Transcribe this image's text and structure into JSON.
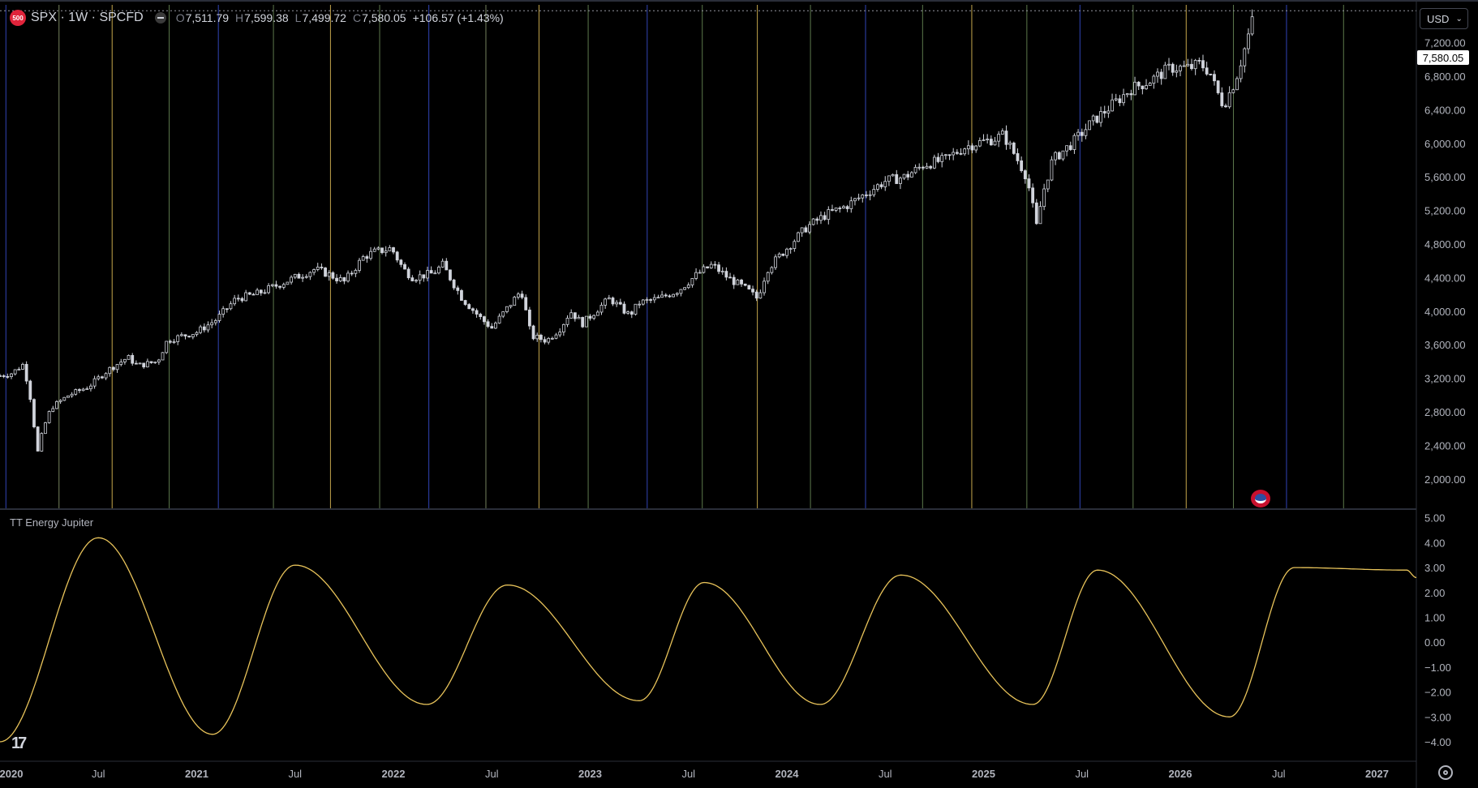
{
  "legend": {
    "badge": "500",
    "symbol": "SPX · 1W · SPCFD",
    "open_label": "O",
    "open": "7,511.79",
    "high_label": "H",
    "high": "7,599.38",
    "low_label": "L",
    "low": "7,499.72",
    "close_label": "C",
    "close": "7,580.05",
    "change": "+106.57 (+1.43%)"
  },
  "currency": "USD",
  "indicator": {
    "title": "TT Energy Jupiter"
  },
  "colors": {
    "background": "#000000",
    "candle": "#d1d4dc",
    "sine": "#e8c35a",
    "price_line": "#ffffff"
  },
  "icons": [
    "tradingview-logo-icon",
    "gear-icon",
    "us-flag-event-icon",
    "chevron-down-icon",
    "eye-icon"
  ],
  "chart_data": [
    {
      "type": "candlestick",
      "title": "SPX · 1W · SPCFD",
      "y_ticks": [
        "2,000.00",
        "2,400.00",
        "2,800.00",
        "3,200.00",
        "3,600.00",
        "4,000.00",
        "4,400.00",
        "4,800.00",
        "5,200.00",
        "5,600.00",
        "6,000.00",
        "6,400.00",
        "6,800.00",
        "7,200.00"
      ],
      "y_tick_values": [
        2000,
        2400,
        2800,
        3200,
        3600,
        4000,
        4400,
        4800,
        5200,
        5600,
        6000,
        6400,
        6800,
        7200
      ],
      "ylim": [
        1650,
        7650
      ],
      "last_price": "7,580.05",
      "last_price_value": 7580.05,
      "x_labels": [
        "2020",
        "Jul",
        "2021",
        "Jul",
        "2022",
        "Jul",
        "2023",
        "Jul",
        "2024",
        "Jul",
        "2025",
        "Jul",
        "2026",
        "Jul",
        "2027"
      ],
      "x_label_years": [
        2020.0,
        2020.5,
        2021.0,
        2021.5,
        2022.0,
        2022.5,
        2023.0,
        2023.5,
        2024.0,
        2024.5,
        2025.0,
        2025.5,
        2026.0,
        2026.5,
        2027.0
      ],
      "xlim": [
        2020.0,
        2027.2
      ],
      "series": [
        {
          "x_year": [
            2020.0,
            2020.06,
            2020.12,
            2020.16,
            2020.19,
            2020.22,
            2020.26,
            2020.35,
            2020.45,
            2020.55,
            2020.65,
            2020.7,
            2020.8,
            2020.85,
            2020.92,
            2021.0,
            2021.1,
            2021.2,
            2021.3,
            2021.4,
            2021.5,
            2021.6,
            2021.66,
            2021.75,
            2021.85,
            2021.9,
            2021.99,
            2022.05,
            2022.1,
            2022.2,
            2022.25,
            2022.35,
            2022.45,
            2022.5,
            2022.6,
            2022.65,
            2022.7,
            2022.78,
            2022.85,
            2022.9,
            2022.96,
            2023.05,
            2023.1,
            2023.2,
            2023.25,
            2023.35,
            2023.45,
            2023.55,
            2023.62,
            2023.7,
            2023.8,
            2023.85,
            2023.9,
            2024.0,
            2024.1,
            2024.2,
            2024.3,
            2024.4,
            2024.5,
            2024.6,
            2024.7,
            2024.8,
            2024.9,
            2024.96,
            2025.05,
            2025.1,
            2025.15,
            2025.22,
            2025.27,
            2025.3,
            2025.35,
            2025.45,
            2025.55,
            2025.65,
            2025.75,
            2025.85,
            2025.95,
            2026.05,
            2026.1,
            2026.15,
            2026.18,
            2026.22,
            2026.28,
            2026.33,
            2026.38
          ],
          "close": [
            3230,
            3260,
            3370,
            2900,
            2300,
            2600,
            2850,
            3000,
            3100,
            3300,
            3450,
            3350,
            3400,
            3650,
            3700,
            3750,
            3900,
            4150,
            4200,
            4300,
            4400,
            4500,
            4450,
            4350,
            4650,
            4700,
            4750,
            4500,
            4400,
            4450,
            4550,
            4150,
            3900,
            3800,
            4100,
            4250,
            3700,
            3650,
            3800,
            4000,
            3850,
            4050,
            4150,
            3950,
            4100,
            4150,
            4250,
            4450,
            4550,
            4400,
            4250,
            4150,
            4500,
            4750,
            5000,
            5150,
            5250,
            5400,
            5550,
            5600,
            5750,
            5800,
            5950,
            6000,
            6050,
            6100,
            5900,
            5600,
            5000,
            5400,
            5800,
            6000,
            6250,
            6450,
            6650,
            6750,
            6900,
            6900,
            6950,
            6850,
            6650,
            6450,
            6750,
            7150,
            7580
          ]
        }
      ]
    },
    {
      "type": "line",
      "title": "TT Energy Jupiter",
      "y_ticks": [
        "5.00",
        "4.00",
        "3.00",
        "2.00",
        "1.00",
        "0.00",
        "−1.00",
        "−2.00",
        "−3.00",
        "−4.00"
      ],
      "y_tick_values": [
        5,
        4,
        3,
        2,
        1,
        0,
        -1,
        -2,
        -3,
        -4
      ],
      "ylim": [
        -4.75,
        5.35
      ],
      "xlim": [
        2020.0,
        2027.2
      ],
      "series": [
        {
          "extrema_x_year": [
            2020.0,
            2020.5,
            2021.08,
            2021.5,
            2022.17,
            2022.58,
            2023.25,
            2023.58,
            2024.17,
            2024.58,
            2025.25,
            2025.58,
            2026.25,
            2026.58,
            2027.15,
            2027.2
          ],
          "extrema_y": [
            -4.0,
            4.2,
            -3.7,
            3.1,
            -2.5,
            2.3,
            -2.35,
            2.4,
            -2.5,
            2.7,
            -2.5,
            2.9,
            -3.0,
            3.0,
            2.9,
            2.6
          ]
        }
      ]
    }
  ],
  "vertical_lines": {
    "x_year": [
      2020.03,
      2020.3,
      2020.57,
      2020.86,
      2021.11,
      2021.39,
      2021.68,
      2021.93,
      2022.18,
      2022.47,
      2022.74,
      2022.99,
      2023.29,
      2023.57,
      2023.85,
      2024.12,
      2024.4,
      2024.69,
      2024.94,
      2025.22,
      2025.49,
      2025.76,
      2026.03,
      2026.27,
      2026.54,
      2026.83
    ],
    "colors": [
      "#3a50d6",
      "#8a9a6e",
      "#e8c35a",
      "#6e8f5a",
      "#3a50d6",
      "#6e8f5a",
      "#e8c35a",
      "#6e8f5a",
      "#3a50d6",
      "#8a9a6e",
      "#e8c35a",
      "#6e8f5a",
      "#3a50d6",
      "#6e8f5a",
      "#e8c35a",
      "#6e8f5a",
      "#3a50d6",
      "#6e8f5a",
      "#e8c35a",
      "#6e8f5a",
      "#3a50d6",
      "#6e8f5a",
      "#e8c35a",
      "#6e8f5a",
      "#3a50d6",
      "#6e8f5a"
    ]
  }
}
